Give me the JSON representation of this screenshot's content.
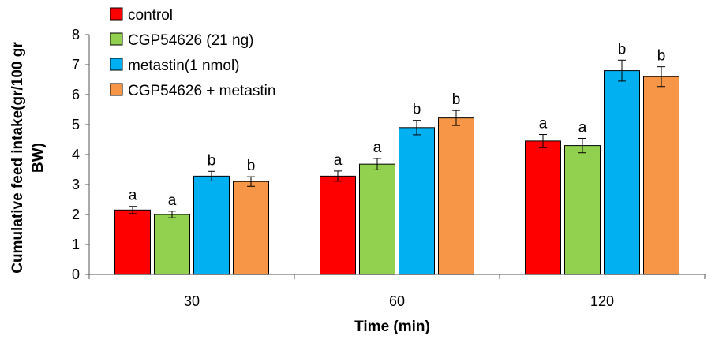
{
  "chart_data": {
    "type": "bar",
    "xlabel": "Time (min)",
    "ylabel_line1": "Cumulative feed intake(gr/100 gr",
    "ylabel_line2": "BW)",
    "ylim": [
      0,
      8
    ],
    "yticks": [
      0,
      1,
      2,
      3,
      4,
      5,
      6,
      7,
      8
    ],
    "categories": [
      "30",
      "60",
      "120"
    ],
    "legend_position": "top-left",
    "grid": false,
    "series": [
      {
        "name": "control",
        "color": "#ff0000",
        "values": [
          2.15,
          3.28,
          4.45
        ],
        "errors": [
          0.12,
          0.17,
          0.22
        ],
        "labels": [
          "a",
          "a",
          "a"
        ]
      },
      {
        "name": "CGP54626 (21 ng)",
        "color": "#92d050",
        "values": [
          2.0,
          3.68,
          4.3
        ],
        "errors": [
          0.11,
          0.19,
          0.24
        ],
        "labels": [
          "a",
          "a",
          "a"
        ]
      },
      {
        "name": "metastin(1 nmol)",
        "color": "#00b0f0",
        "values": [
          3.28,
          4.9,
          6.8
        ],
        "errors": [
          0.16,
          0.24,
          0.35
        ],
        "labels": [
          "b",
          "b",
          "b"
        ]
      },
      {
        "name": "CGP54626 + metastin",
        "color": "#f79646",
        "values": [
          3.1,
          5.22,
          6.6
        ],
        "errors": [
          0.16,
          0.25,
          0.33
        ],
        "labels": [
          "b",
          "b",
          "b"
        ]
      }
    ]
  }
}
